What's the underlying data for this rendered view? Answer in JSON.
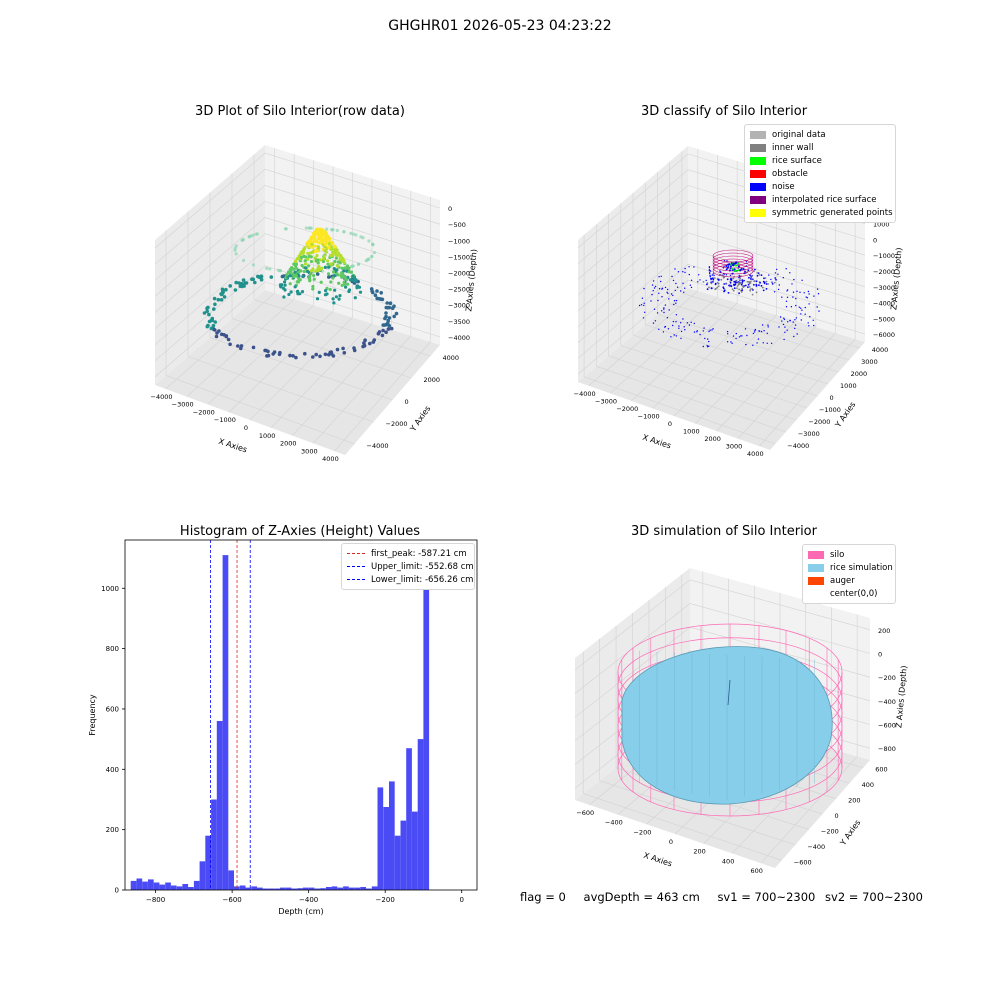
{
  "figure": {
    "suptitle": "GHGHR01 2026-05-23 04:23:22",
    "footer": {
      "flag": "flag = 0",
      "avg_depth": "avgDepth = 463 cm",
      "sv1": "sv1 = 700~2300",
      "sv2": "sv2 = 700~2300"
    }
  },
  "chart_data": [
    {
      "type": "scatter",
      "title": "3D Plot of Silo Interior(row data)",
      "xlabel": "X Axies",
      "ylabel": "Y Axies",
      "zlabel": "Z Axies (Depth)",
      "x_ticks": [
        "−4000",
        "−3000",
        "−2000",
        "−1000",
        "0",
        "1000",
        "2000",
        "3000",
        "4000"
      ],
      "y_ticks": [
        "−4000",
        "−2000",
        "0",
        "2000",
        "4000"
      ],
      "z_ticks": [
        "0",
        "−500",
        "−1000",
        "−1500",
        "−2000",
        "−2500",
        "−3000",
        "−3500",
        "−4000"
      ],
      "colormap": "viridis"
    },
    {
      "type": "scatter",
      "title": "3D classify of Silo Interior",
      "xlabel": "X Axies",
      "ylabel": "Y Axies",
      "zlabel": "Z Axies (Depth)",
      "x_ticks": [
        "−4000",
        "−3000",
        "−2000",
        "−1000",
        "0",
        "1000",
        "2000",
        "3000",
        "4000"
      ],
      "y_ticks": [
        "−4000",
        "−3000",
        "−2000",
        "−1000",
        "0",
        "1000",
        "2000",
        "3000",
        "4000"
      ],
      "z_ticks": [
        "2000",
        "1000",
        "0",
        "−1000",
        "−2000",
        "−3000",
        "−4000",
        "−5000",
        "−6000"
      ],
      "legend": [
        {
          "label": "original data",
          "color": "#b3b3b3"
        },
        {
          "label": "inner wall",
          "color": "#808080"
        },
        {
          "label": "rice surface",
          "color": "#00ff00"
        },
        {
          "label": "obstacle",
          "color": "#ff0000"
        },
        {
          "label": "noise",
          "color": "#0000ff"
        },
        {
          "label": "interpolated rice surface",
          "color": "#800080"
        },
        {
          "label": "symmetric generated points",
          "color": "#ffff00"
        }
      ]
    },
    {
      "type": "bar",
      "title": "Histogram of Z-Axies (Height) Values",
      "xlabel": "Depth (cm)",
      "ylabel": "Frequency",
      "xlim": [
        -880,
        40
      ],
      "ylim": [
        0,
        1160
      ],
      "x_ticks": [
        -800,
        -600,
        -400,
        -200,
        0
      ],
      "y_ticks": [
        0,
        200,
        400,
        600,
        800,
        1000
      ],
      "bin_width": 15,
      "bin_left_edges": [
        -865,
        -850,
        -835,
        -820,
        -805,
        -790,
        -775,
        -760,
        -745,
        -730,
        -715,
        -700,
        -685,
        -670,
        -655,
        -640,
        -625,
        -610,
        -595,
        -580,
        -565,
        -550,
        -535,
        -520,
        -505,
        -490,
        -475,
        -460,
        -445,
        -430,
        -415,
        -400,
        -385,
        -370,
        -355,
        -340,
        -325,
        -310,
        -295,
        -280,
        -265,
        -250,
        -235,
        -220,
        -205,
        -190,
        -175,
        -160,
        -145,
        -130,
        -115,
        -100,
        -85,
        -70,
        -55,
        -40,
        -25,
        -10
      ],
      "values": [
        30,
        38,
        28,
        35,
        25,
        18,
        25,
        15,
        12,
        20,
        10,
        30,
        95,
        180,
        300,
        560,
        1110,
        65,
        12,
        15,
        8,
        12,
        8,
        5,
        5,
        5,
        8,
        8,
        5,
        6,
        8,
        8,
        5,
        6,
        10,
        12,
        8,
        12,
        8,
        8,
        10,
        5,
        12,
        340,
        275,
        360,
        180,
        230,
        470,
        260,
        500,
        1040,
        0,
        0,
        0,
        0,
        0,
        0
      ],
      "bar_color": "#4b4bf5",
      "vlines": [
        {
          "label": "first_peak: -587.21 cm",
          "x": -587.21,
          "color": "#d62728"
        },
        {
          "label": "Upper_limit: -552.68 cm",
          "x": -552.68,
          "color": "#0000ff"
        },
        {
          "label": "Lower_limit: -656.26 cm",
          "x": -656.26,
          "color": "#0000ff"
        }
      ]
    },
    {
      "type": "scatter",
      "title": "3D simulation of Silo Interior",
      "xlabel": "X Axies",
      "ylabel": "Y Axies",
      "zlabel": "Z Axies (Depth)",
      "x_ticks": [
        "−600",
        "−400",
        "−200",
        "0",
        "200",
        "400",
        "600"
      ],
      "y_ticks": [
        "−600",
        "−400",
        "−200",
        "0",
        "200",
        "400",
        "600"
      ],
      "z_ticks": [
        "200",
        "0",
        "−200",
        "−400",
        "−600",
        "−800"
      ],
      "legend": [
        {
          "label": "silo",
          "color": "#ff69b4"
        },
        {
          "label": "rice simulation",
          "color": "#87ceeb"
        },
        {
          "label": "auger",
          "color": "#ff4500"
        },
        {
          "label": "center(0,0)",
          "color": "#ffffff"
        }
      ]
    }
  ]
}
